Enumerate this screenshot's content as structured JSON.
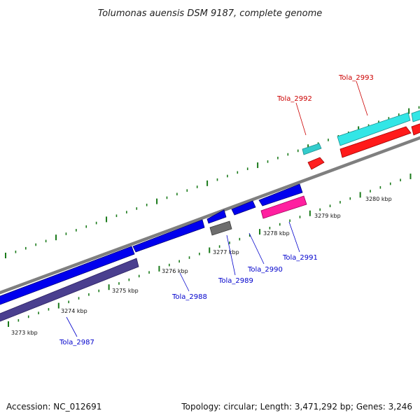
{
  "title": "Tolumonas auensis DSM 9187, complete genome",
  "footer": {
    "accession": "Accession: NC_012691",
    "summary": "Topology: circular; Length: 3,471,292 bp; Genes: 3,246"
  },
  "colors": {
    "forward_label": "#cc0000",
    "reverse_label": "#0000cc",
    "backbone": "#8c8c8c",
    "tick": "#1a7a1a",
    "forward_cds": "#ff0000",
    "forward_other": "#33cccc",
    "reverse_cds": "#0000ee",
    "reverse_other": "#ff3399",
    "reverse_dark": "#4a3f8f",
    "reverse_gray": "#707070"
  },
  "axis": {
    "labels": [
      "3273 kbp",
      "3274 kbp",
      "3275 kbp",
      "3276 kbp",
      "3277 kbp",
      "3278 kbp",
      "3279 kbp",
      "3280 kbp"
    ]
  },
  "genes": {
    "tola_2987": "Tola_2987",
    "tola_2988": "Tola_2988",
    "tola_2989": "Tola_2989",
    "tola_2990": "Tola_2990",
    "tola_2991": "Tola_2991",
    "tola_2992": "Tola_2992",
    "tola_2993": "Tola_2993"
  }
}
